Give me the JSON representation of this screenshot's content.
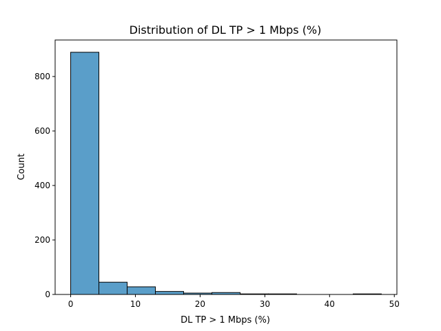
{
  "chart_data": {
    "type": "bar",
    "title": "Distribution of DL TP > 1 Mbps (%)",
    "xlabel": "DL TP > 1 Mbps (%)",
    "ylabel": "Count",
    "xlim": [
      -2.4,
      50.4
    ],
    "ylim": [
      0,
      934
    ],
    "xticks": [
      0,
      10,
      20,
      30,
      40,
      50
    ],
    "yticks": [
      0,
      200,
      400,
      600,
      800
    ],
    "bins": [
      {
        "start": 0.0,
        "end": 4.36,
        "count": 889
      },
      {
        "start": 4.36,
        "end": 8.73,
        "count": 45
      },
      {
        "start": 8.73,
        "end": 13.09,
        "count": 28
      },
      {
        "start": 13.09,
        "end": 17.45,
        "count": 11
      },
      {
        "start": 17.45,
        "end": 21.82,
        "count": 5
      },
      {
        "start": 21.82,
        "end": 26.18,
        "count": 7
      },
      {
        "start": 26.18,
        "end": 30.55,
        "count": 2
      },
      {
        "start": 30.55,
        "end": 34.91,
        "count": 2
      },
      {
        "start": 34.91,
        "end": 39.27,
        "count": 0
      },
      {
        "start": 39.27,
        "end": 43.64,
        "count": 0
      },
      {
        "start": 43.64,
        "end": 48.0,
        "count": 2
      }
    ],
    "bar_color": "#5a9ec9",
    "edge_color": "#000000"
  }
}
